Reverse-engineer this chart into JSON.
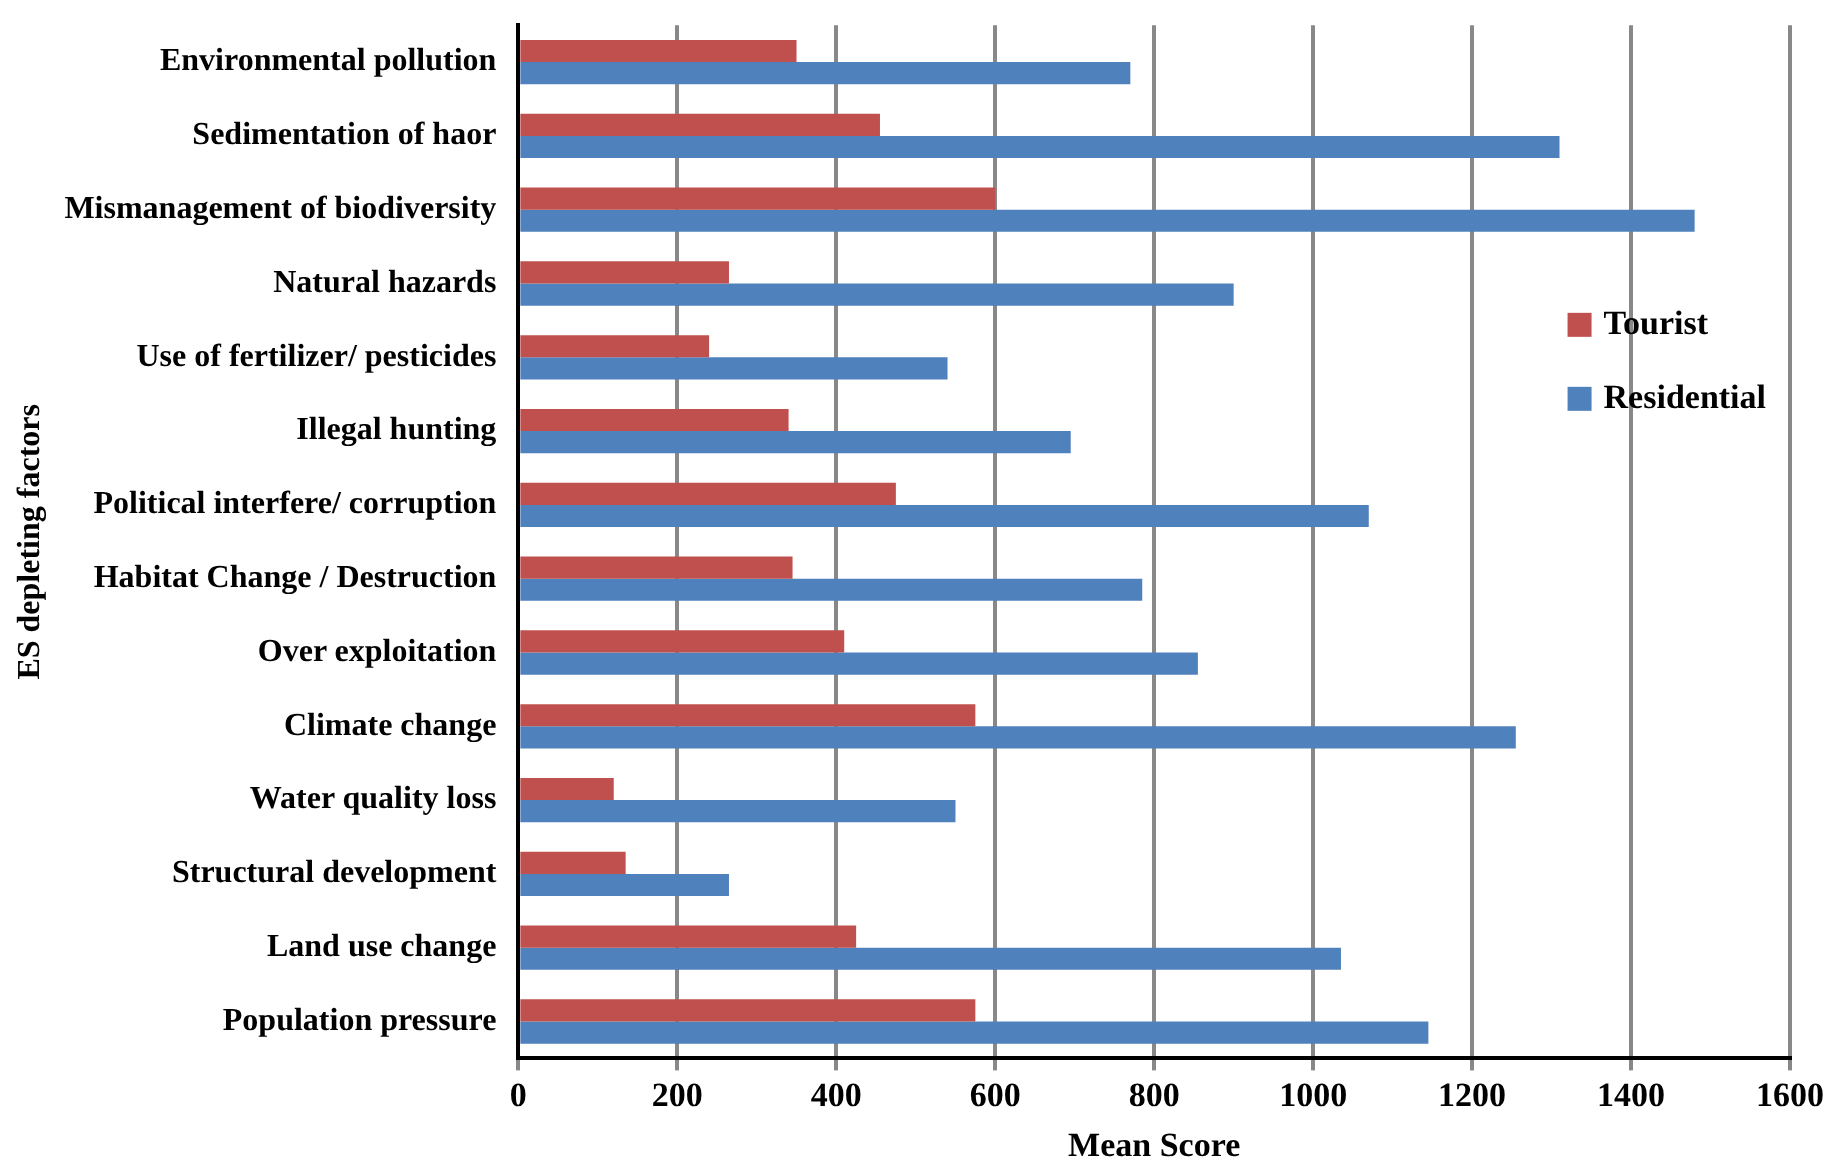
{
  "chart_data": {
    "type": "bar",
    "orientation": "horizontal",
    "xlabel": "Mean Score",
    "ylabel": "ES depleting factors",
    "categories": [
      "Environmental pollution",
      "Sedimentation of haor",
      "Mismanagement of biodiversity",
      "Natural hazards",
      "Use of fertilizer/ pesticides",
      "Illegal hunting",
      "Political interfere/ corruption",
      "Habitat Change / Destruction",
      "Over exploitation",
      "Climate change",
      "Water quality loss",
      "Structural development",
      "Land use change",
      "Population pressure"
    ],
    "series": [
      {
        "name": "Tourist",
        "color": "#c0504d",
        "values": [
          350,
          455,
          600,
          265,
          240,
          340,
          475,
          345,
          410,
          575,
          120,
          135,
          425,
          575
        ]
      },
      {
        "name": "Residential",
        "color": "#4f81bd",
        "values": [
          770,
          1310,
          1480,
          900,
          540,
          695,
          1070,
          785,
          855,
          1255,
          550,
          265,
          1035,
          1145
        ]
      }
    ],
    "xlim": [
      0,
      1600
    ],
    "xticks": [
      0,
      200,
      400,
      600,
      800,
      1000,
      1200,
      1400,
      1600
    ],
    "grid": "x",
    "legend": "right"
  }
}
